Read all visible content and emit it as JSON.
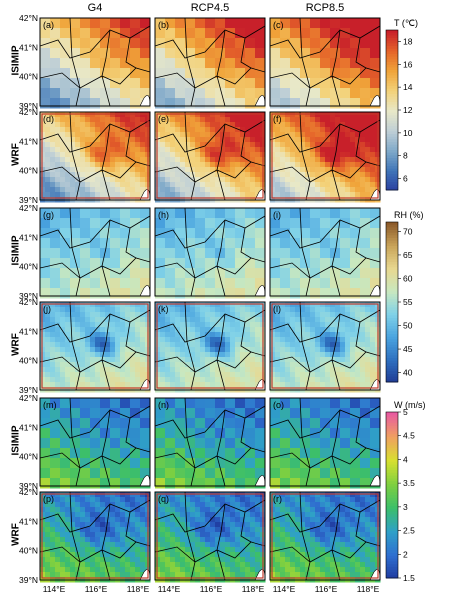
{
  "columns": [
    "G4",
    "RCP4.5",
    "RCP8.5"
  ],
  "row_labels": [
    "ISIMIP",
    "WRF",
    "ISIMIP",
    "WRF",
    "ISIMIP",
    "WRF"
  ],
  "panel_letters": [
    "(a)",
    "(b)",
    "(c)",
    "(d)",
    "(e)",
    "(f)",
    "(g)",
    "(h)",
    "(i)",
    "(j)",
    "(k)",
    "(l)",
    "(m)",
    "(n)",
    "(o)",
    "(p)",
    "(q)",
    "(r)"
  ],
  "lat_labels": [
    "42°N",
    "41°N",
    "40°N",
    "39°N"
  ],
  "lon_labels": [
    "114°E",
    "116°E",
    "118°E"
  ],
  "colorbars": [
    {
      "title": "T (℃)",
      "ticks": [
        "18",
        "16",
        "14",
        "12",
        "10",
        "8",
        "6"
      ],
      "min": 5,
      "max": 19,
      "colors": [
        "#2a3fa0",
        "#3f74b8",
        "#7fa9c9",
        "#bfcfd6",
        "#e8e8c8",
        "#f3d27a",
        "#f0a43a",
        "#e5642a",
        "#c8202a"
      ]
    },
    {
      "title": "RH (%)",
      "ticks": [
        "70",
        "65",
        "60",
        "55",
        "50",
        "45",
        "40"
      ],
      "min": 38,
      "max": 72,
      "colors": [
        "#1f3a93",
        "#2e6fbf",
        "#4aa3df",
        "#7fd1e8",
        "#c8e8c0",
        "#e8d890",
        "#c9a45a",
        "#8c5a2a"
      ]
    },
    {
      "title": "W (m/s)",
      "ticks": [
        "5",
        "4.5",
        "4",
        "3.5",
        "3",
        "2.5",
        "2",
        "1.5"
      ],
      "min": 1.5,
      "max": 5,
      "colors": [
        "#1f3a9e",
        "#2f6fd0",
        "#2fa0c8",
        "#3cbf6a",
        "#7fd040",
        "#d8e030",
        "#f0a060",
        "#e85aa0"
      ]
    }
  ]
}
